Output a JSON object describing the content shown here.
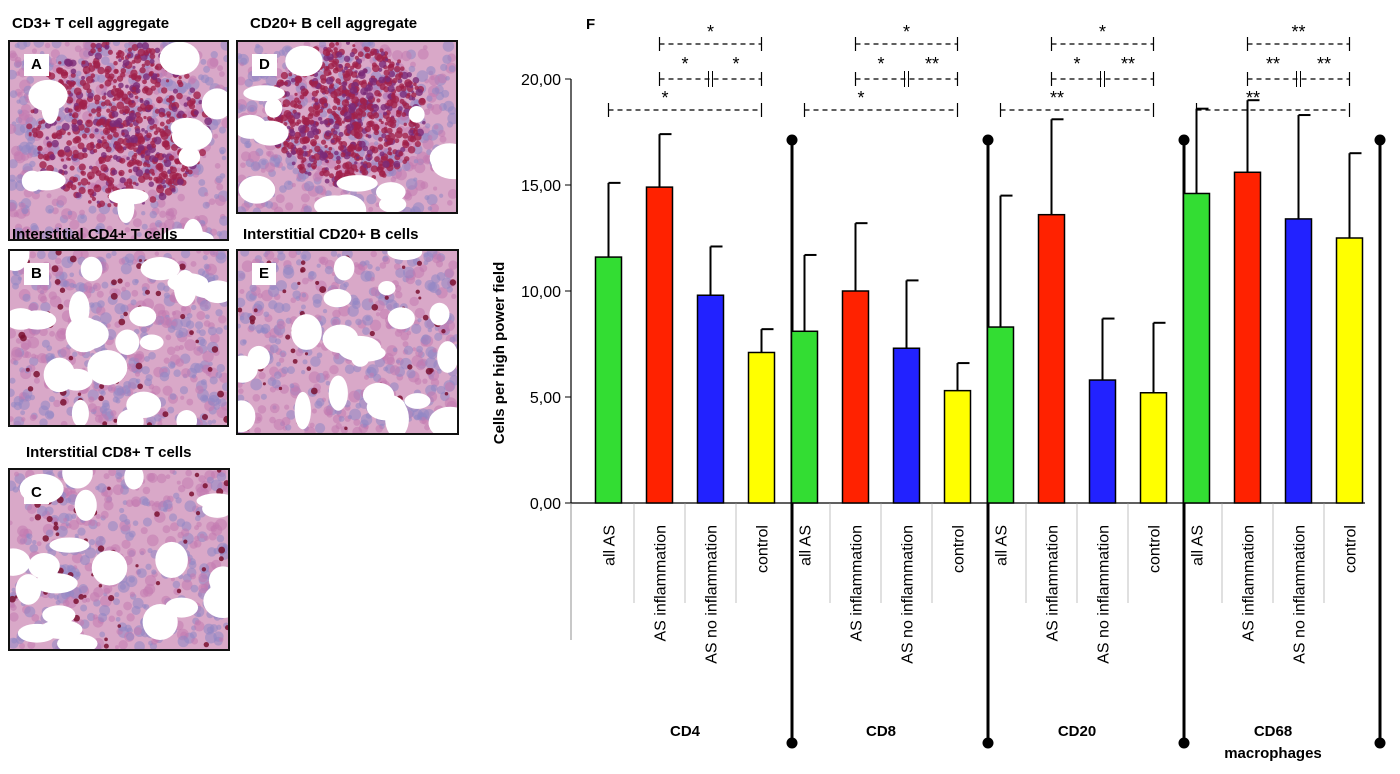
{
  "micrographs": [
    {
      "id": "A",
      "title": "CD3+ T cell aggregate",
      "kind": "aggregate"
    },
    {
      "id": "D",
      "title": "CD20+ B cell aggregate",
      "kind": "aggregate"
    },
    {
      "id": "B",
      "title": "Interstitial CD4+ T cells",
      "kind": "interstitial"
    },
    {
      "id": "E",
      "title": "Interstitial CD20+ B cells",
      "kind": "interstitial"
    },
    {
      "id": "C",
      "title": "Interstitial CD8+ T cells",
      "kind": "interstitial"
    }
  ],
  "chart_data": {
    "panel_label": "F",
    "type": "bar",
    "ylabel": "Cells per high power field",
    "ylim": [
      0,
      20
    ],
    "yticks": [
      "0,00",
      "5,00",
      "10,00",
      "15,00",
      "20,00"
    ],
    "yticks_values": [
      0,
      5,
      10,
      15,
      20
    ],
    "colors": {
      "all AS": "#33dd33",
      "AS inflammation": "#ff2200",
      "AS  no inflammation": "#2222ff",
      "control": "#ffff00"
    },
    "groups": [
      {
        "name": "CD4",
        "categories": [
          "all AS",
          "AS inflammation",
          "AS  no inflammation",
          "control"
        ],
        "values": [
          11.6,
          14.9,
          9.8,
          7.1
        ],
        "errors": [
          15.1,
          17.4,
          12.1,
          8.2
        ],
        "significance": [
          {
            "from": 0,
            "to": 3,
            "label": "*"
          },
          {
            "from": 1,
            "to": 3,
            "label": "*"
          },
          {
            "from": 1,
            "to": 2,
            "label": "*"
          },
          {
            "from": 2,
            "to": 3,
            "label": "*"
          }
        ]
      },
      {
        "name": "CD8",
        "categories": [
          "all AS",
          "AS inflammation",
          "AS  no inflammation",
          "control"
        ],
        "values": [
          8.1,
          10.0,
          7.3,
          5.3
        ],
        "errors": [
          11.7,
          13.2,
          10.5,
          6.6
        ],
        "significance": [
          {
            "from": 0,
            "to": 3,
            "label": "*"
          },
          {
            "from": 1,
            "to": 3,
            "label": "*"
          },
          {
            "from": 1,
            "to": 2,
            "label": "*"
          },
          {
            "from": 2,
            "to": 3,
            "label": "**"
          }
        ]
      },
      {
        "name": "CD20",
        "categories": [
          "all AS",
          "AS inflammation",
          "AS  no inflammation",
          "control"
        ],
        "values": [
          8.3,
          13.6,
          5.8,
          5.2
        ],
        "errors": [
          14.5,
          18.1,
          8.7,
          8.5
        ],
        "significance": [
          {
            "from": 0,
            "to": 3,
            "label": "**"
          },
          {
            "from": 1,
            "to": 3,
            "label": "*"
          },
          {
            "from": 1,
            "to": 2,
            "label": "*"
          },
          {
            "from": 2,
            "to": 3,
            "label": "**"
          }
        ]
      },
      {
        "name": "CD68\nmacrophages",
        "categories": [
          "all AS",
          "AS inflammation",
          "AS  no inflammation",
          "control"
        ],
        "values": [
          14.6,
          15.6,
          13.4,
          12.5
        ],
        "errors": [
          18.6,
          19.0,
          18.3,
          16.5
        ],
        "significance": [
          {
            "from": 0,
            "to": 3,
            "label": "**"
          },
          {
            "from": 1,
            "to": 3,
            "label": "**"
          },
          {
            "from": 1,
            "to": 2,
            "label": "**"
          },
          {
            "from": 2,
            "to": 3,
            "label": "**"
          }
        ]
      }
    ]
  }
}
